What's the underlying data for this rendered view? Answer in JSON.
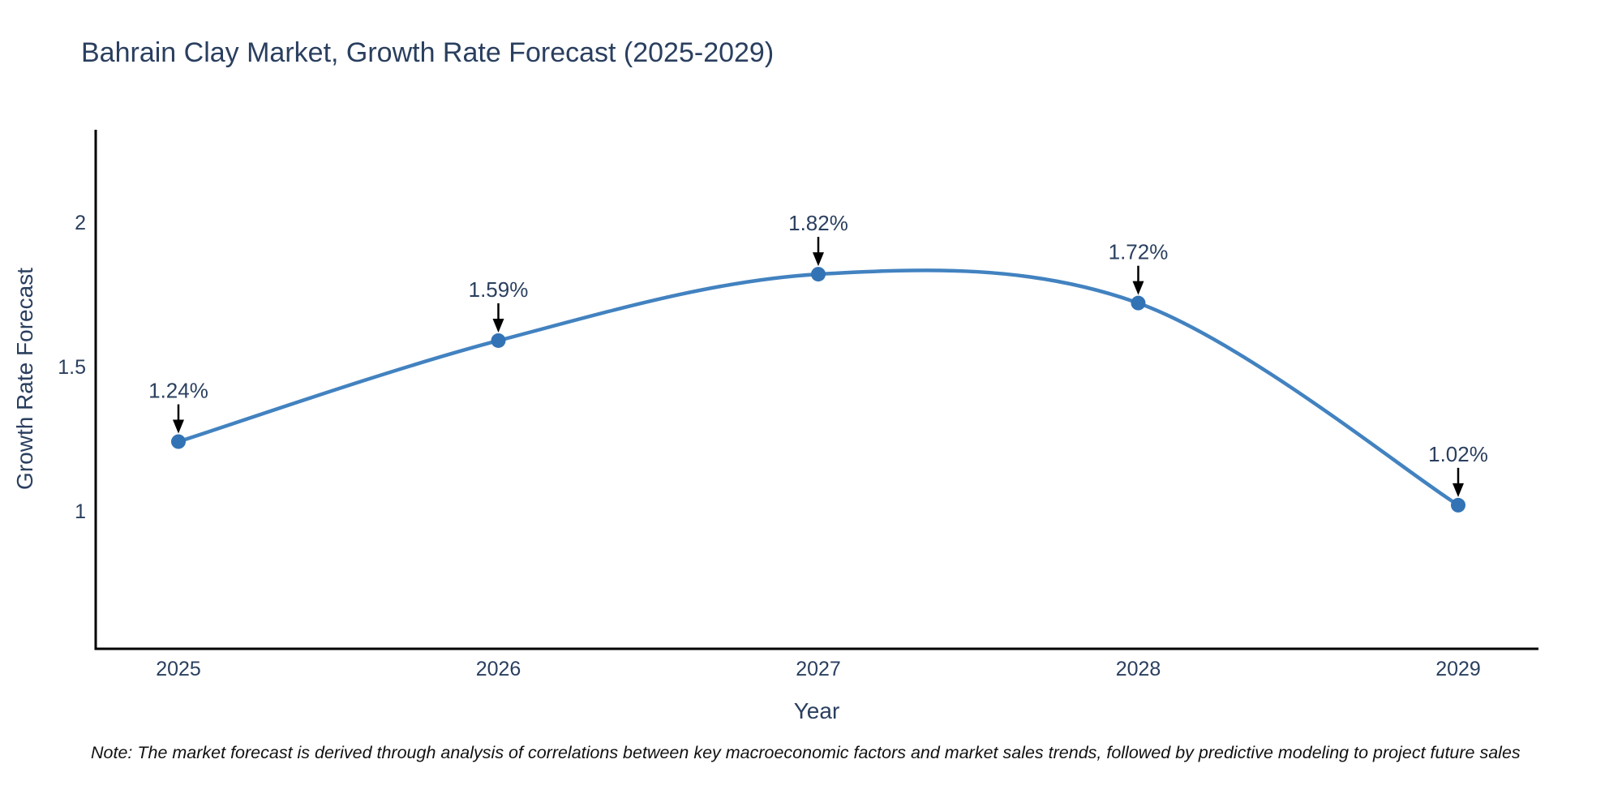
{
  "title": "Bahrain Clay Market, Growth Rate Forecast (2025-2029)",
  "note": "Note: The market forecast is derived through analysis of correlations between key macroeconomic factors and market sales trends, followed by predictive modeling to project future sales",
  "chart_data": {
    "type": "line",
    "line_shape": "spline",
    "x": [
      2025,
      2026,
      2027,
      2028,
      2029
    ],
    "y": [
      1.24,
      1.59,
      1.82,
      1.72,
      1.02
    ],
    "point_labels": [
      "1.24%",
      "1.59%",
      "1.82%",
      "1.72%",
      "1.02%"
    ],
    "title": "Bahrain Clay Market, Growth Rate Forecast (2025-2029)",
    "xlabel": "Year",
    "ylabel": "Growth Rate Forecast",
    "xtick_labels": [
      "2025",
      "2026",
      "2027",
      "2028",
      "2029"
    ],
    "ytick_values": [
      1,
      1.5,
      2
    ],
    "ytick_labels": [
      "1",
      "1.5",
      "2"
    ],
    "xlim": [
      2024.74,
      2029.25
    ],
    "ylim": [
      0.52,
      2.32
    ],
    "grid": false,
    "legend": false,
    "annotations_have_arrows": true
  },
  "colors": {
    "line": "#4282c0",
    "marker": "#3273b5",
    "axis_line": "#000000",
    "text": "#2a3f5f",
    "annotation_text": "#2a3f5f",
    "arrow": "#000000",
    "note_text": "#111111",
    "background": "#ffffff"
  }
}
